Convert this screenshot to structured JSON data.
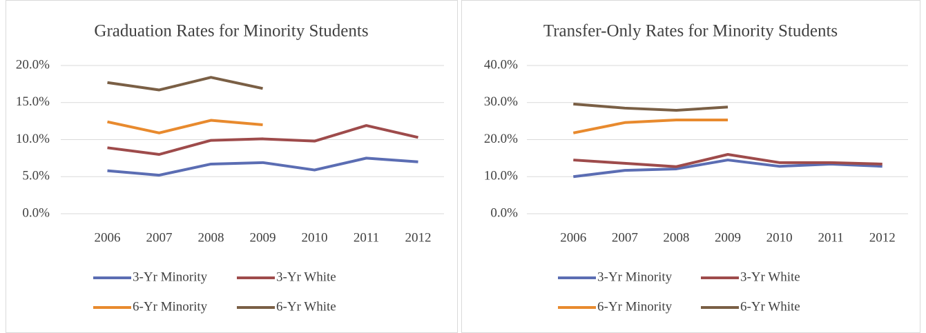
{
  "chart_data": [
    {
      "type": "line",
      "title": "Graduation Rates for Minority Students",
      "categories": [
        "2006",
        "2007",
        "2008",
        "2009",
        "2010",
        "2011",
        "2012"
      ],
      "series": [
        {
          "name": "3-Yr Minority",
          "color": "#5b6db3",
          "values": [
            5.8,
            5.2,
            6.7,
            6.9,
            5.9,
            7.5,
            7.0
          ]
        },
        {
          "name": "3-Yr White",
          "color": "#9e4b4b",
          "values": [
            8.9,
            8.0,
            9.9,
            10.1,
            9.8,
            11.9,
            10.3
          ]
        },
        {
          "name": "6-Yr Minority",
          "color": "#e88a2e",
          "values": [
            12.4,
            10.9,
            12.6,
            12.0,
            null,
            null,
            null
          ]
        },
        {
          "name": "6-Yr White",
          "color": "#7a5f45",
          "values": [
            17.7,
            16.7,
            18.4,
            16.9,
            null,
            null,
            null
          ]
        }
      ],
      "ylim": [
        0,
        20
      ],
      "yticks": [
        {
          "value": 0,
          "label": "0.0%"
        },
        {
          "value": 5,
          "label": "5.0%"
        },
        {
          "value": 10,
          "label": "10.0%"
        },
        {
          "value": 15,
          "label": "15.0%"
        },
        {
          "value": 20,
          "label": "20.0%"
        }
      ],
      "grid": true,
      "legend": "bottom"
    },
    {
      "type": "line",
      "title": "Transfer-Only Rates for Minority Students",
      "categories": [
        "2006",
        "2007",
        "2008",
        "2009",
        "2010",
        "2011",
        "2012"
      ],
      "series": [
        {
          "name": "3-Yr Minority",
          "color": "#5b6db3",
          "values": [
            10.0,
            11.7,
            12.1,
            14.5,
            12.8,
            13.4,
            12.8
          ]
        },
        {
          "name": "3-Yr White",
          "color": "#9e4b4b",
          "values": [
            14.5,
            13.6,
            12.7,
            16.0,
            13.8,
            13.8,
            13.4
          ]
        },
        {
          "name": "6-Yr Minority",
          "color": "#e88a2e",
          "values": [
            21.8,
            24.6,
            25.3,
            25.3,
            null,
            null,
            null
          ]
        },
        {
          "name": "6-Yr White",
          "color": "#7a5f45",
          "values": [
            29.6,
            28.5,
            27.9,
            28.8,
            null,
            null,
            null
          ]
        }
      ],
      "ylim": [
        0,
        40
      ],
      "yticks": [
        {
          "value": 0,
          "label": "0.0%"
        },
        {
          "value": 10,
          "label": "10.0%"
        },
        {
          "value": 20,
          "label": "20.0%"
        },
        {
          "value": 30,
          "label": "30.0%"
        },
        {
          "value": 40,
          "label": "40.0%"
        }
      ],
      "grid": true,
      "legend": "bottom"
    }
  ]
}
